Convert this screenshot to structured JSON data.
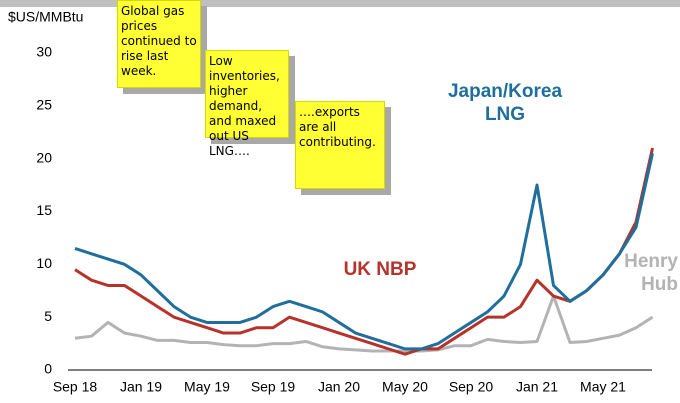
{
  "chart_data": {
    "type": "line",
    "y_label": "$US/MMBtu",
    "categories": [
      "Sep 18",
      null,
      null,
      null,
      "Jan 19",
      null,
      null,
      null,
      "May 19",
      null,
      null,
      null,
      "Sep 19",
      null,
      null,
      null,
      "Jan 20",
      null,
      null,
      null,
      "May 20",
      null,
      null,
      null,
      "Sep 20",
      null,
      null,
      null,
      "Jan 21",
      null,
      null,
      null,
      "May 21",
      null,
      null,
      null
    ],
    "series": [
      {
        "name": "Henry Hub",
        "color": "#b3b3b3",
        "values": [
          3,
          3.2,
          4.5,
          3.5,
          3.2,
          2.8,
          2.8,
          2.6,
          2.6,
          2.4,
          2.3,
          2.3,
          2.5,
          2.5,
          2.7,
          2.2,
          2,
          1.9,
          1.8,
          1.8,
          1.8,
          1.8,
          1.9,
          2.3,
          2.3,
          2.9,
          2.7,
          2.6,
          2.7,
          7,
          2.6,
          2.7,
          3,
          3.3,
          4,
          5
        ]
      },
      {
        "name": "UK NBP",
        "color": "#b5332a",
        "values": [
          9.5,
          8.5,
          8,
          8,
          7,
          6,
          5,
          4.5,
          4,
          3.5,
          3.5,
          4,
          4,
          5,
          4.5,
          4,
          3.5,
          3,
          2.5,
          2,
          1.5,
          2,
          2,
          3,
          4,
          5,
          5,
          6,
          8.5,
          7,
          6.5,
          7.5,
          9,
          11,
          14,
          21
        ]
      },
      {
        "name": "Japan/Korea LNG",
        "color": "#1f6e9c",
        "values": [
          11.5,
          11,
          10.5,
          10,
          9,
          7.5,
          6,
          5,
          4.5,
          4.5,
          4.5,
          5,
          6,
          6.5,
          6,
          5.5,
          4.5,
          3.5,
          3,
          2.5,
          2,
          2,
          2.5,
          3.5,
          4.5,
          5.5,
          7,
          10,
          17.5,
          8,
          6.5,
          7.5,
          9,
          11,
          13.5,
          20.5
        ]
      }
    ],
    "ylim": [
      0,
      30
    ],
    "yticks": [
      0,
      5,
      10,
      15,
      20,
      25,
      30
    ],
    "annotations": [
      "Global gas prices continued to rise last week.",
      "Low inventories, higher demand, and maxed out US LNG….",
      "….exports are all contributing."
    ]
  }
}
